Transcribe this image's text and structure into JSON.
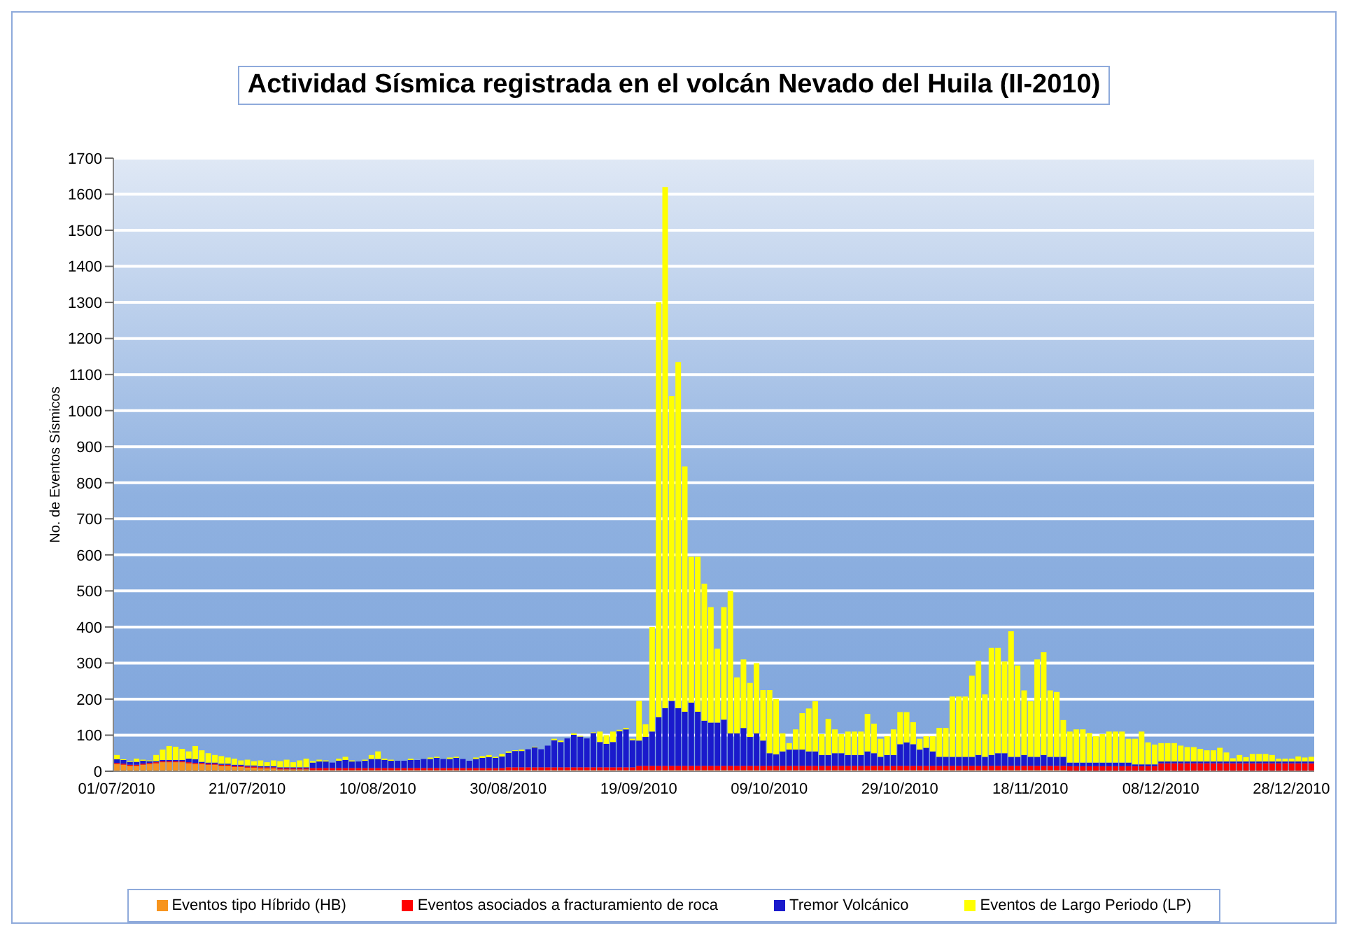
{
  "chart_data": {
    "type": "bar",
    "title": "Actividad Sísmica registrada en el volcán Nevado del Huila (II-2010)",
    "ylabel": "No. de Eventos  Sísmicos",
    "stacked": true,
    "grid": "y",
    "legend": "bottom",
    "ylim": [
      0,
      1700
    ],
    "yticks": [
      0,
      100,
      200,
      300,
      400,
      500,
      600,
      700,
      800,
      900,
      1000,
      1100,
      1200,
      1300,
      1400,
      1500,
      1600,
      1700
    ],
    "categories": [
      "01/07/2010",
      null,
      null,
      null,
      null,
      null,
      null,
      null,
      null,
      null,
      null,
      null,
      null,
      null,
      null,
      null,
      null,
      null,
      null,
      null,
      "21/07/2010",
      null,
      null,
      null,
      null,
      null,
      null,
      null,
      null,
      null,
      null,
      null,
      null,
      null,
      null,
      null,
      null,
      null,
      null,
      null,
      "10/08/2010",
      null,
      null,
      null,
      null,
      null,
      null,
      null,
      null,
      null,
      null,
      null,
      null,
      null,
      null,
      null,
      null,
      null,
      null,
      null,
      "30/08/2010",
      null,
      null,
      null,
      null,
      null,
      null,
      null,
      null,
      null,
      null,
      null,
      null,
      null,
      null,
      null,
      null,
      null,
      null,
      null,
      "19/09/2010",
      null,
      null,
      null,
      null,
      null,
      null,
      null,
      null,
      null,
      null,
      null,
      null,
      null,
      null,
      null,
      null,
      null,
      null,
      null,
      "09/10/2010",
      null,
      null,
      null,
      null,
      null,
      null,
      null,
      null,
      null,
      null,
      null,
      null,
      null,
      null,
      null,
      null,
      null,
      null,
      null,
      "29/10/2010",
      null,
      null,
      null,
      null,
      null,
      null,
      null,
      null,
      null,
      null,
      null,
      null,
      null,
      null,
      null,
      null,
      null,
      null,
      null,
      "18/11/2010",
      null,
      null,
      null,
      null,
      null,
      null,
      null,
      null,
      null,
      null,
      null,
      null,
      null,
      null,
      null,
      null,
      null,
      null,
      null,
      "08/12/2010",
      null,
      null,
      null,
      null,
      null,
      null,
      null,
      null,
      null,
      null,
      null,
      null,
      null,
      null,
      null,
      null,
      null,
      null,
      null,
      "28/12/2010",
      null,
      null,
      null
    ],
    "series": [
      {
        "name": "Eventos tipo Híbrido (HB)",
        "color": "#f7941d",
        "values": [
          20,
          18,
          15,
          15,
          18,
          20,
          22,
          25,
          25,
          25,
          25,
          22,
          20,
          20,
          18,
          18,
          15,
          15,
          12,
          12,
          10,
          10,
          8,
          8,
          8,
          5,
          5,
          5,
          5,
          5,
          3,
          3,
          3,
          3,
          3,
          3,
          3,
          3,
          3,
          3,
          3,
          3,
          3,
          3,
          3,
          3,
          3,
          3,
          3,
          3,
          3,
          3,
          3,
          3,
          3,
          3,
          3,
          3,
          3,
          3,
          3,
          3,
          3,
          3,
          3,
          3,
          3,
          3,
          3,
          3,
          3,
          3,
          3,
          3,
          3,
          3,
          3,
          3,
          3,
          3,
          3,
          3,
          3,
          3,
          3,
          3,
          3,
          3,
          3,
          3,
          3,
          3,
          3,
          3,
          3,
          3,
          3,
          3,
          3,
          3,
          3,
          3,
          3,
          3,
          3,
          3,
          3,
          3,
          3,
          3,
          3,
          3,
          3,
          3,
          3,
          3,
          3,
          3,
          3,
          3,
          3,
          3,
          3,
          3,
          3,
          3,
          3,
          3,
          3,
          3,
          3,
          3,
          3,
          3,
          3,
          3,
          3,
          3,
          3,
          3,
          3,
          3,
          3,
          3,
          3,
          3,
          2,
          2,
          2,
          2,
          2,
          2,
          2,
          2,
          2,
          2,
          2,
          2,
          2,
          2,
          2,
          2,
          2,
          2,
          2,
          2,
          2,
          2,
          2,
          2,
          2,
          2,
          2,
          2,
          2,
          2,
          2,
          2,
          2,
          2,
          2,
          2,
          2,
          2
        ]
      },
      {
        "name": "Eventos asociados a fracturamiento de roca",
        "color": "#ff0000",
        "values": [
          3,
          3,
          3,
          3,
          3,
          3,
          3,
          3,
          3,
          3,
          3,
          3,
          3,
          3,
          3,
          3,
          3,
          3,
          3,
          3,
          3,
          3,
          3,
          3,
          3,
          3,
          3,
          3,
          3,
          3,
          6,
          6,
          6,
          6,
          6,
          6,
          6,
          6,
          6,
          6,
          6,
          6,
          6,
          6,
          6,
          6,
          6,
          6,
          6,
          6,
          6,
          6,
          6,
          6,
          6,
          6,
          6,
          6,
          6,
          6,
          8,
          8,
          8,
          8,
          8,
          8,
          8,
          8,
          8,
          8,
          8,
          8,
          8,
          8,
          8,
          8,
          8,
          8,
          8,
          8,
          12,
          12,
          12,
          12,
          12,
          12,
          12,
          12,
          12,
          12,
          12,
          12,
          12,
          12,
          12,
          12,
          12,
          12,
          12,
          12,
          12,
          12,
          12,
          12,
          12,
          12,
          12,
          12,
          12,
          12,
          12,
          12,
          12,
          12,
          12,
          12,
          12,
          12,
          12,
          12,
          12,
          12,
          12,
          12,
          12,
          12,
          12,
          12,
          12,
          12,
          12,
          12,
          12,
          12,
          12,
          12,
          12,
          12,
          12,
          12,
          12,
          12,
          12,
          12,
          12,
          12,
          12,
          12,
          12,
          12,
          12,
          12,
          12,
          12,
          12,
          12,
          12,
          12,
          12,
          12,
          20,
          20,
          20,
          20,
          20,
          20,
          20,
          20,
          20,
          20,
          20,
          20,
          20,
          20,
          20,
          20,
          20,
          20,
          20,
          20,
          20,
          20,
          20,
          20
        ]
      },
      {
        "name": "Tremor Volcánico",
        "color": "#1a1acc",
        "values": [
          10,
          10,
          8,
          8,
          8,
          5,
          3,
          3,
          3,
          3,
          3,
          10,
          10,
          3,
          3,
          3,
          3,
          3,
          3,
          3,
          3,
          3,
          3,
          3,
          3,
          3,
          3,
          3,
          3,
          3,
          15,
          18,
          18,
          15,
          20,
          22,
          18,
          18,
          20,
          25,
          25,
          22,
          20,
          20,
          20,
          22,
          22,
          25,
          25,
          28,
          25,
          25,
          28,
          25,
          20,
          25,
          28,
          30,
          28,
          32,
          40,
          45,
          45,
          50,
          55,
          50,
          60,
          75,
          70,
          80,
          90,
          85,
          80,
          95,
          70,
          65,
          70,
          100,
          105,
          75,
          70,
          80,
          95,
          135,
          160,
          180,
          160,
          150,
          175,
          150,
          125,
          120,
          120,
          128,
          90,
          90,
          105,
          80,
          90,
          70,
          35,
          32,
          40,
          45,
          45,
          45,
          40,
          40,
          30,
          30,
          35,
          35,
          30,
          30,
          30,
          40,
          35,
          25,
          30,
          30,
          60,
          65,
          60,
          45,
          50,
          40,
          25,
          25,
          25,
          25,
          25,
          25,
          30,
          25,
          30,
          35,
          35,
          25,
          25,
          30,
          25,
          25,
          30,
          25,
          25,
          25,
          10,
          10,
          10,
          10,
          10,
          10,
          10,
          10,
          10,
          10,
          5,
          5,
          5,
          5,
          5,
          5,
          5,
          5,
          5,
          5,
          5,
          5,
          5,
          5,
          5,
          5,
          5,
          5,
          5,
          5,
          5,
          5,
          5,
          5,
          5,
          5,
          5,
          5
        ]
      },
      {
        "name": "Eventos de Largo Periodo (LP)",
        "color": "#ffff00",
        "values": [
          12,
          2,
          2,
          9,
          3,
          2,
          17,
          29,
          39,
          37,
          31,
          20,
          37,
          32,
          26,
          21,
          21,
          17,
          17,
          12,
          16,
          12,
          16,
          11,
          16,
          17,
          21,
          14,
          19,
          24,
          4,
          5,
          3,
          null,
          6,
          9,
          3,
          null,
          3,
          11,
          21,
          4,
          3,
          null,
          null,
          4,
          null,
          null,
          4,
          3,
          null,
          4,
          3,
          null,
          null,
          4,
          5,
          6,
          3,
          7,
          4,
          2,
          4,
          null,
          2,
          null,
          null,
          4,
          4,
          null,
          4,
          2,
          null,
          2,
          29,
          24,
          29,
          4,
          4,
          4,
          110,
          35,
          290,
          1150,
          1445,
          845,
          960,
          680,
          405,
          430,
          380,
          320,
          205,
          312,
          395,
          155,
          190,
          150,
          195,
          140,
          175,
          153,
          50,
          18,
          56,
          101,
          119,
          139,
          58,
          100,
          66,
          53,
          65,
          65,
          65,
          104,
          82,
          50,
          52,
          71,
          89,
          84,
          61,
          30,
          32,
          42,
          80,
          80,
          167,
          167,
          167,
          225,
          261,
          173,
          297,
          292,
          254,
          348,
          253,
          179,
          154,
          270,
          285,
          184,
          180,
          102,
          86,
          92,
          92,
          82,
          73,
          79,
          86,
          86,
          86,
          66,
          71,
          91,
          61,
          55,
          51,
          51,
          51,
          44,
          40,
          40,
          35,
          31,
          31,
          38,
          25,
          9,
          18,
          12,
          21,
          21,
          21,
          18,
          8,
          8,
          8,
          14,
          11,
          13
        ]
      }
    ]
  }
}
